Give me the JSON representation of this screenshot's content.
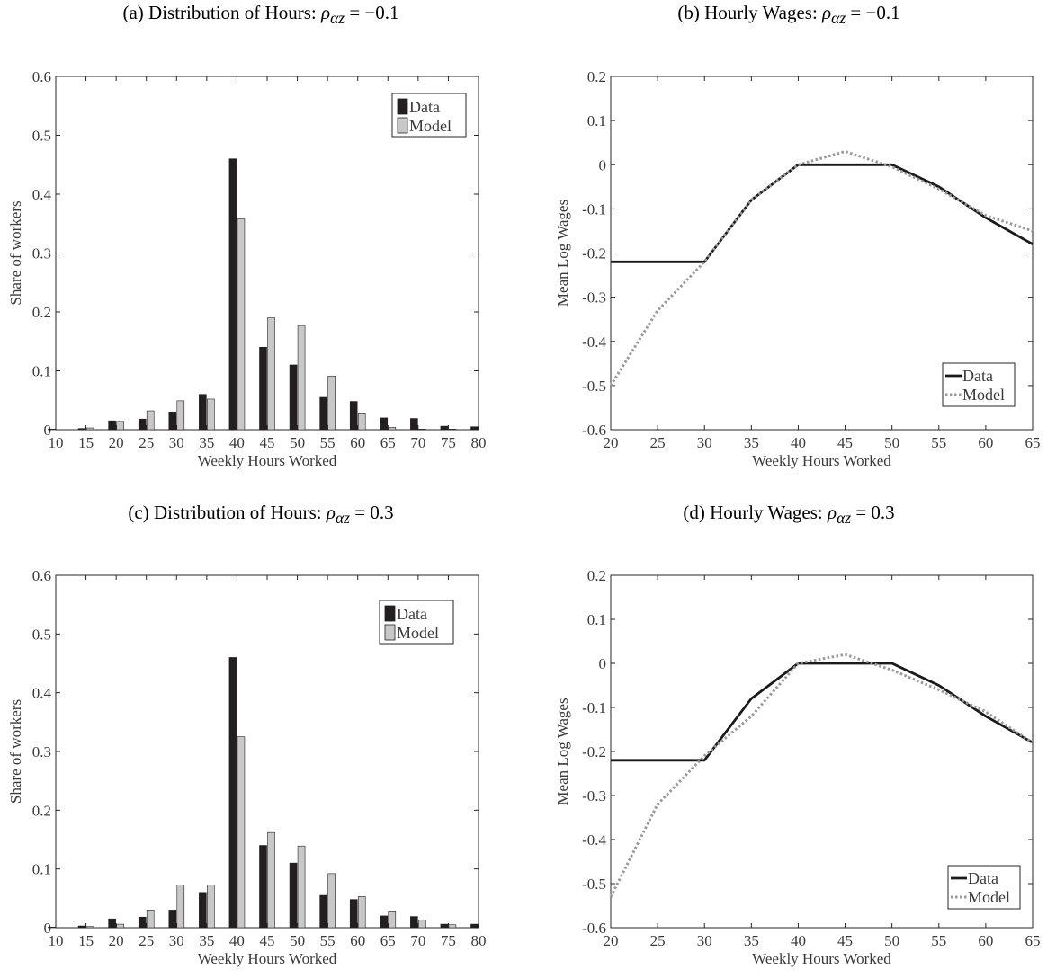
{
  "panels": [
    {
      "title_prefix": "(a) Distribution of Hours: ",
      "title_sym": "ρ",
      "title_sub": "αz",
      "title_value": " = −0.1",
      "colors": {
        "data": "#231f20",
        "model": "#c8c8c8"
      },
      "chart_data": {
        "type": "bar",
        "x": [
          10,
          15,
          20,
          25,
          30,
          35,
          40,
          45,
          50,
          55,
          60,
          65,
          70,
          75,
          80
        ],
        "series": [
          {
            "name": "Data",
            "values": [
              0.001,
              0.002,
              0.015,
              0.018,
              0.03,
              0.06,
              0.46,
              0.14,
              0.11,
              0.055,
              0.048,
              0.02,
              0.019,
              0.006,
              0.005
            ]
          },
          {
            "name": "Model",
            "values": [
              0.0,
              0.003,
              0.014,
              0.032,
              0.049,
              0.052,
              0.358,
              0.19,
              0.177,
              0.091,
              0.027,
              0.004,
              0.001,
              0.001,
              0.0
            ]
          }
        ],
        "xlabel": "Weekly Hours Worked",
        "ylabel": "Share of workers",
        "xlim": [
          10,
          80
        ],
        "ylim": [
          0,
          0.6
        ],
        "xticks": [
          "10",
          "15",
          "20",
          "25",
          "30",
          "35",
          "40",
          "45",
          "50",
          "55",
          "60",
          "65",
          "70",
          "75",
          "80"
        ],
        "yticks": [
          "0",
          "0.1",
          "0.2",
          "0.3",
          "0.4",
          "0.5",
          "0.6"
        ],
        "legend": "top-right"
      }
    },
    {
      "title_prefix": "(b) Hourly Wages: ",
      "title_sym": "ρ",
      "title_sub": "αz",
      "title_value": " = −0.1",
      "colors": {
        "data": "#1a1a1a",
        "model": "#999999"
      },
      "chart_data": {
        "type": "line",
        "x": [
          20,
          25,
          30,
          35,
          40,
          45,
          50,
          55,
          60,
          65
        ],
        "series": [
          {
            "name": "Data",
            "values": [
              -0.22,
              -0.22,
              -0.22,
              -0.08,
              0.0,
              0.0,
              0.0,
              -0.05,
              -0.12,
              -0.18
            ]
          },
          {
            "name": "Model",
            "values": [
              -0.5,
              -0.33,
              -0.22,
              -0.08,
              0.0,
              0.03,
              -0.005,
              -0.055,
              -0.115,
              -0.15
            ]
          }
        ],
        "xlabel": "Weekly Hours Worked",
        "ylabel": "Mean Log Wages",
        "xlim": [
          20,
          65
        ],
        "ylim": [
          -0.6,
          0.2
        ],
        "xticks": [
          "20",
          "25",
          "30",
          "35",
          "40",
          "45",
          "50",
          "55",
          "60",
          "65"
        ],
        "yticks": [
          "-0.6",
          "-0.5",
          "-0.4",
          "-0.3",
          "-0.2",
          "-0.1",
          "0",
          "0.1",
          "0.2"
        ],
        "legend": "bottom-right"
      }
    },
    {
      "title_prefix": "(c) Distribution of Hours: ",
      "title_sym": "ρ",
      "title_sub": "αz",
      "title_value": " = 0.3",
      "colors": {
        "data": "#231f20",
        "model": "#c8c8c8"
      },
      "chart_data": {
        "type": "bar",
        "x": [
          10,
          15,
          20,
          25,
          30,
          35,
          40,
          45,
          50,
          55,
          60,
          65,
          70,
          75,
          80
        ],
        "series": [
          {
            "name": "Data",
            "values": [
              0.001,
              0.003,
              0.015,
              0.018,
              0.03,
              0.06,
              0.46,
              0.14,
              0.11,
              0.055,
              0.048,
              0.02,
              0.019,
              0.006,
              0.006
            ]
          },
          {
            "name": "Model",
            "values": [
              0.0,
              0.002,
              0.006,
              0.03,
              0.073,
              0.073,
              0.325,
              0.162,
              0.139,
              0.092,
              0.053,
              0.027,
              0.013,
              0.005,
              0.0
            ]
          }
        ],
        "xlabel": "Weekly Hours Worked",
        "ylabel": "Share of workers",
        "xlim": [
          10,
          80
        ],
        "ylim": [
          0,
          0.6
        ],
        "xticks": [
          "10",
          "15",
          "20",
          "25",
          "30",
          "35",
          "40",
          "45",
          "50",
          "55",
          "60",
          "65",
          "70",
          "75",
          "80"
        ],
        "yticks": [
          "0",
          "0.1",
          "0.2",
          "0.3",
          "0.4",
          "0.5",
          "0.6"
        ],
        "legend": "top-right"
      }
    },
    {
      "title_prefix": "(d) Hourly Wages: ",
      "title_sym": "ρ",
      "title_sub": "αz",
      "title_value": " = 0.3",
      "colors": {
        "data": "#1a1a1a",
        "model": "#999999"
      },
      "chart_data": {
        "type": "line",
        "x": [
          20,
          25,
          30,
          35,
          40,
          45,
          50,
          55,
          60,
          65
        ],
        "series": [
          {
            "name": "Data",
            "values": [
              -0.22,
              -0.22,
              -0.22,
              -0.08,
              0.0,
              0.0,
              0.0,
              -0.05,
              -0.12,
              -0.18
            ]
          },
          {
            "name": "Model",
            "values": [
              -0.53,
              -0.32,
              -0.21,
              -0.12,
              0.0,
              0.02,
              -0.015,
              -0.06,
              -0.11,
              -0.18
            ]
          }
        ],
        "xlabel": "Weekly Hours Worked",
        "ylabel": "Mean Log Wages",
        "xlim": [
          20,
          65
        ],
        "ylim": [
          -0.6,
          0.2
        ],
        "xticks": [
          "20",
          "25",
          "30",
          "35",
          "40",
          "45",
          "50",
          "55",
          "60",
          "65"
        ],
        "yticks": [
          "-0.6",
          "-0.5",
          "-0.4",
          "-0.3",
          "-0.2",
          "-0.1",
          "0",
          "0.1",
          "0.2"
        ],
        "legend": "bottom-right"
      }
    }
  ]
}
